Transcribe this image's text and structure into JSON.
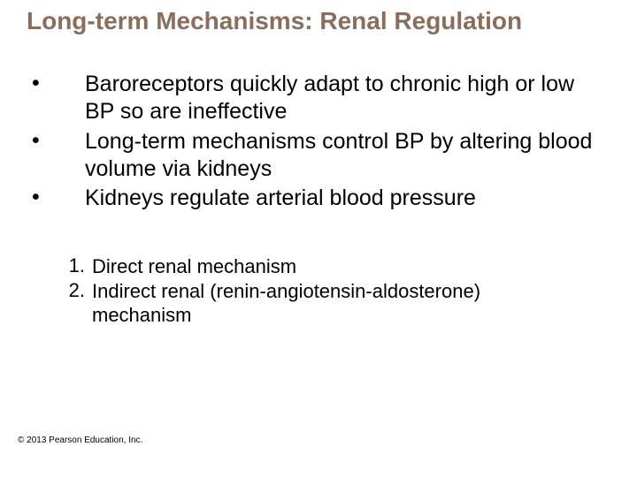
{
  "title": {
    "text": "Long-term Mechanisms: Renal Regulation",
    "color": "#8a6d5a",
    "fontsize": 28
  },
  "bullets": {
    "fontsize": 25,
    "color": "#000000",
    "items": [
      "Baroreceptors quickly adapt to chronic high or low BP so are ineffective",
      "Long-term mechanisms control BP by altering blood volume via kidneys",
      "Kidneys regulate arterial blood pressure"
    ]
  },
  "numbered": {
    "fontsize": 22,
    "color": "#000000",
    "items": [
      "Direct renal mechanism",
      "Indirect renal (renin-angiotensin-aldosterone) mechanism"
    ]
  },
  "copyright": {
    "text": "© 2013 Pearson Education, Inc.",
    "fontsize": 10,
    "color": "#000000"
  },
  "background_color": "#ffffff"
}
